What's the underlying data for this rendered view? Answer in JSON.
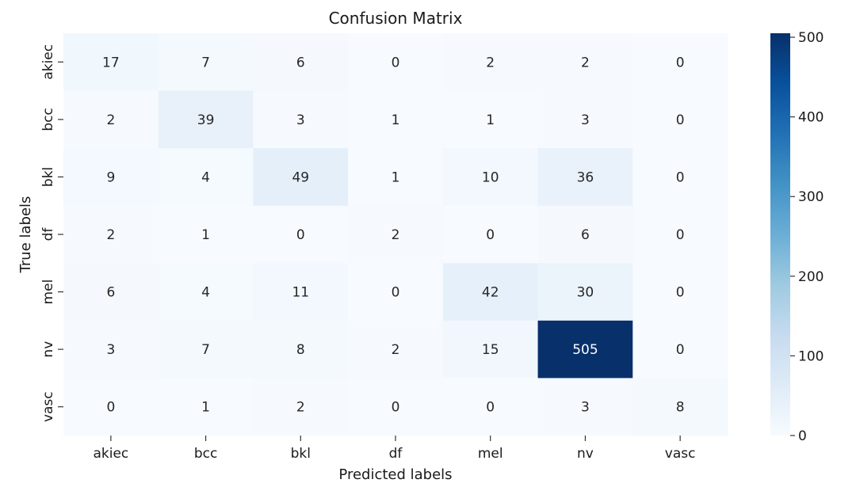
{
  "chart_data": {
    "type": "heatmap",
    "title": "Confusion Matrix",
    "xlabel": "Predicted labels",
    "ylabel": "True labels",
    "x_categories": [
      "akiec",
      "bcc",
      "bkl",
      "df",
      "mel",
      "nv",
      "vasc"
    ],
    "y_categories": [
      "akiec",
      "bcc",
      "bkl",
      "df",
      "mel",
      "nv",
      "vasc"
    ],
    "values": [
      [
        17,
        7,
        6,
        0,
        2,
        2,
        0
      ],
      [
        2,
        39,
        3,
        1,
        1,
        3,
        0
      ],
      [
        9,
        4,
        49,
        1,
        10,
        36,
        0
      ],
      [
        2,
        1,
        0,
        2,
        0,
        6,
        0
      ],
      [
        6,
        4,
        11,
        0,
        42,
        30,
        0
      ],
      [
        3,
        7,
        8,
        2,
        15,
        505,
        0
      ],
      [
        0,
        1,
        2,
        0,
        0,
        3,
        8
      ]
    ],
    "colormap": "Blues",
    "colorbar": {
      "range": [
        0,
        505
      ],
      "ticks": [
        0,
        100,
        200,
        300,
        400,
        500
      ]
    }
  }
}
